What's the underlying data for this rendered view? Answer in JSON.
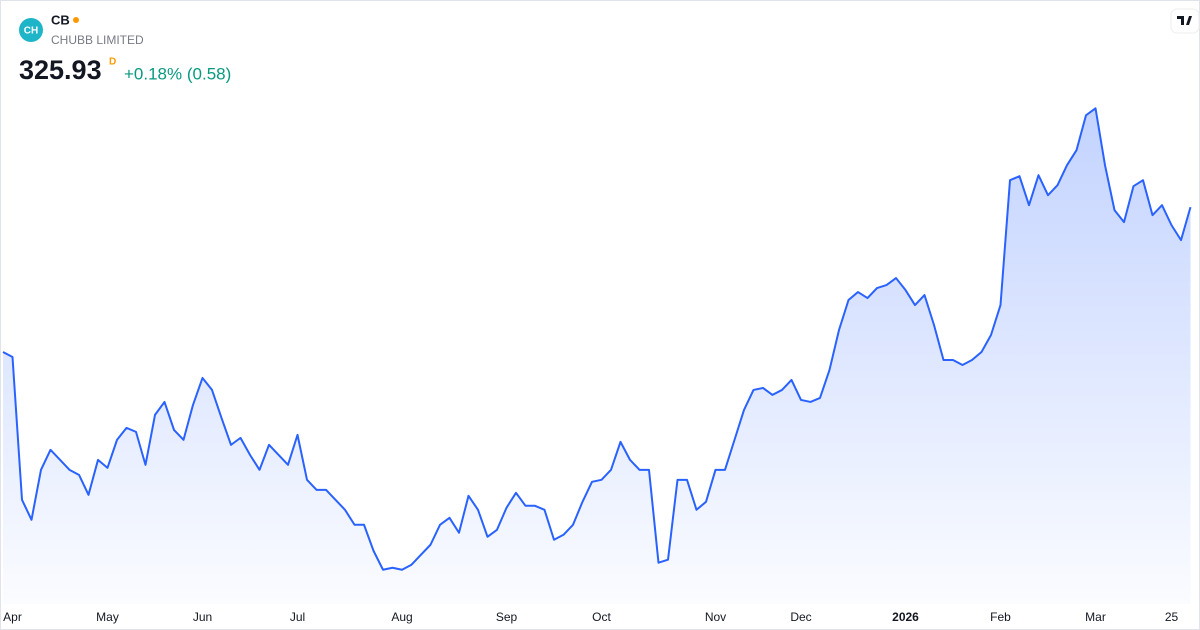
{
  "header": {
    "logo": "CH",
    "symbol": "CB",
    "name": "CHUBB LIMITED",
    "price": "325.93",
    "interval": "D",
    "change": "+0.18% (0.58)"
  },
  "chart_data": {
    "type": "area",
    "color": "#2962ff",
    "categories": [
      null,
      "Apr",
      null,
      null,
      null,
      null,
      null,
      null,
      null,
      null,
      null,
      "May",
      null,
      null,
      null,
      null,
      null,
      null,
      null,
      null,
      null,
      "Jun",
      null,
      null,
      null,
      null,
      null,
      null,
      null,
      null,
      null,
      "Jul",
      null,
      null,
      null,
      null,
      null,
      null,
      null,
      null,
      null,
      null,
      "Aug",
      null,
      null,
      null,
      null,
      null,
      null,
      null,
      null,
      null,
      null,
      "Sep",
      null,
      null,
      null,
      null,
      null,
      null,
      null,
      null,
      null,
      "Oct",
      null,
      null,
      null,
      null,
      null,
      null,
      null,
      null,
      null,
      null,
      null,
      "Nov",
      null,
      null,
      null,
      null,
      null,
      null,
      null,
      null,
      "Dec",
      null,
      null,
      null,
      null,
      null,
      null,
      null,
      null,
      null,
      null,
      "2026",
      null,
      null,
      null,
      null,
      null,
      null,
      null,
      null,
      null,
      "Feb",
      null,
      null,
      null,
      null,
      null,
      null,
      null,
      null,
      null,
      "Mar",
      null,
      null,
      null,
      null,
      null,
      null,
      null,
      "25",
      null,
      null
    ],
    "values": [
      302.73,
      301.93,
      279.05,
      275.85,
      283.85,
      287.05,
      285.45,
      283.85,
      283.05,
      279.85,
      285.45,
      284.17,
      288.65,
      290.57,
      289.93,
      284.65,
      292.65,
      294.73,
      290.25,
      288.65,
      294.25,
      298.57,
      296.65,
      292.17,
      287.85,
      288.97,
      286.25,
      283.85,
      287.85,
      286.25,
      284.65,
      289.45,
      282.25,
      280.65,
      280.65,
      279.05,
      277.45,
      275.05,
      275.05,
      270.89,
      267.85,
      268.17,
      267.85,
      268.65,
      270.25,
      271.85,
      275.05,
      276.17,
      273.77,
      279.69,
      277.45,
      273.13,
      274.25,
      277.77,
      280.17,
      278.09,
      278.09,
      277.45,
      272.65,
      273.45,
      275.05,
      278.73,
      281.93,
      282.25,
      283.85,
      288.33,
      285.45,
      283.85,
      283.85,
      268.97,
      269.45,
      282.25,
      282.25,
      277.45,
      278.73,
      283.85,
      283.85,
      288.65,
      293.45,
      296.65,
      296.97,
      295.85,
      296.65,
      298.25,
      295.05,
      294.73,
      295.37,
      299.85,
      306.25,
      311.05,
      312.33,
      311.37,
      312.97,
      313.45,
      314.57,
      312.65,
      310.25,
      311.85,
      307.05,
      301.45,
      301.45,
      300.65,
      301.45,
      302.73,
      305.45,
      310.25,
      330.25,
      330.89,
      326.25,
      331.05,
      327.85,
      329.45,
      332.65,
      335.05,
      340.65,
      341.77,
      332.65,
      325.45,
      323.53,
      329.29,
      330.25,
      324.65,
      326.25,
      323.05,
      320.65,
      325.93
    ],
    "ylim": [
      263,
      349.5
    ]
  }
}
